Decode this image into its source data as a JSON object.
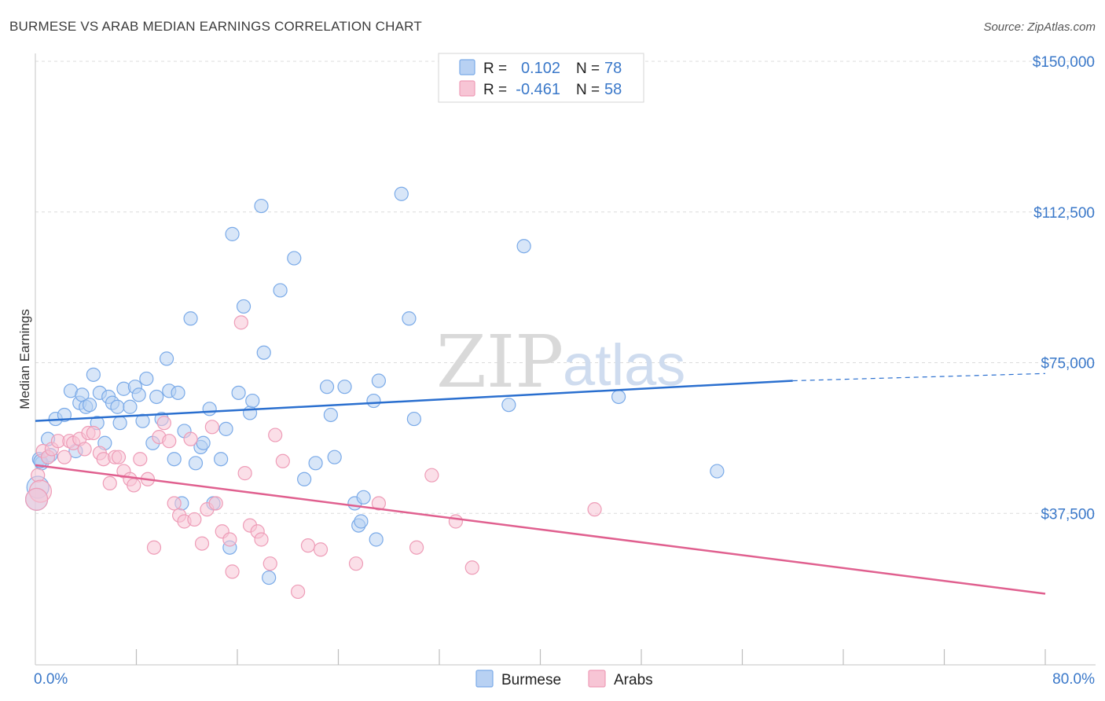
{
  "title": "BURMESE VS ARAB MEDIAN EARNINGS CORRELATION CHART",
  "source": "Source: ZipAtlas.com",
  "watermark": {
    "zip": "ZIP",
    "atlas": "atlas"
  },
  "colors": {
    "burmese": "#7aaae8",
    "burmese_fill": "#b8d1f3",
    "burmese_line": "#2a6fcf",
    "arabs": "#ee9cb7",
    "arabs_fill": "#f7c5d5",
    "arabs_line": "#e0608f",
    "axis_text": "#3a78c9",
    "grid": "#dcdcdc"
  },
  "legend": {
    "rows": [
      {
        "r_label": "R =",
        "r_value": "0.102",
        "n_label": "N =",
        "n_value": "78"
      },
      {
        "r_label": "R =",
        "r_value": "-0.461",
        "n_label": "N =",
        "n_value": "58"
      }
    ]
  },
  "bottom_legend": [
    "Burmese",
    "Arabs"
  ],
  "chart_data": {
    "type": "scatter",
    "title": "BURMESE VS ARAB MEDIAN EARNINGS CORRELATION CHART",
    "xlabel": "",
    "ylabel": "Median Earnings",
    "xlim": [
      0,
      80
    ],
    "ylim": [
      0,
      150000
    ],
    "x_tick_labels": [
      "0.0%",
      "80.0%"
    ],
    "y_ticks": [
      37500,
      75000,
      112500,
      150000
    ],
    "y_tick_labels": [
      "$37,500",
      "$75,000",
      "$112,500",
      "$150,000"
    ],
    "grid": true,
    "legend_position": "top-center",
    "series": [
      {
        "name": "Burmese",
        "r": 0.102,
        "n": 78,
        "trend": {
          "x": [
            0,
            60
          ],
          "y": [
            60500,
            70500
          ],
          "dashed_to": [
            80,
            72300
          ]
        },
        "points": [
          [
            0.3,
            51000
          ],
          [
            0.5,
            50000
          ],
          [
            1.0,
            56000
          ],
          [
            1.2,
            52000
          ],
          [
            1.6,
            61000
          ],
          [
            2.3,
            62000
          ],
          [
            2.8,
            68000
          ],
          [
            3.2,
            53000
          ],
          [
            3.5,
            65000
          ],
          [
            3.7,
            67000
          ],
          [
            4.0,
            64000
          ],
          [
            4.3,
            64500
          ],
          [
            4.6,
            72000
          ],
          [
            4.9,
            60000
          ],
          [
            5.1,
            67500
          ],
          [
            5.5,
            55000
          ],
          [
            5.8,
            66500
          ],
          [
            6.1,
            65000
          ],
          [
            6.5,
            64000
          ],
          [
            6.7,
            60000
          ],
          [
            7.0,
            68500
          ],
          [
            7.5,
            64000
          ],
          [
            7.9,
            69000
          ],
          [
            8.2,
            67000
          ],
          [
            8.5,
            60500
          ],
          [
            8.8,
            71000
          ],
          [
            9.3,
            55000
          ],
          [
            9.6,
            66500
          ],
          [
            10.0,
            61000
          ],
          [
            10.4,
            76000
          ],
          [
            10.6,
            68000
          ],
          [
            11.0,
            51000
          ],
          [
            11.3,
            67500
          ],
          [
            11.6,
            40000
          ],
          [
            11.8,
            58000
          ],
          [
            12.3,
            86000
          ],
          [
            12.7,
            50000
          ],
          [
            13.1,
            54000
          ],
          [
            13.3,
            55000
          ],
          [
            13.8,
            63500
          ],
          [
            14.1,
            40000
          ],
          [
            14.7,
            51000
          ],
          [
            15.1,
            58500
          ],
          [
            15.4,
            29000
          ],
          [
            15.6,
            107000
          ],
          [
            16.1,
            67500
          ],
          [
            16.5,
            89000
          ],
          [
            17.0,
            62500
          ],
          [
            17.2,
            65500
          ],
          [
            17.9,
            114000
          ],
          [
            18.1,
            77500
          ],
          [
            18.5,
            21500
          ],
          [
            19.4,
            93000
          ],
          [
            20.5,
            101000
          ],
          [
            21.3,
            46000
          ],
          [
            22.2,
            50000
          ],
          [
            23.1,
            69000
          ],
          [
            23.4,
            62000
          ],
          [
            23.7,
            51500
          ],
          [
            24.5,
            69000
          ],
          [
            25.3,
            40000
          ],
          [
            25.6,
            34500
          ],
          [
            25.8,
            35500
          ],
          [
            26.0,
            41500
          ],
          [
            26.8,
            65500
          ],
          [
            27.2,
            70500
          ],
          [
            27.0,
            31000
          ],
          [
            29.0,
            117000
          ],
          [
            29.6,
            86000
          ],
          [
            30.0,
            61000
          ],
          [
            37.5,
            64500
          ],
          [
            38.7,
            104000
          ],
          [
            46.2,
            66500
          ],
          [
            54.0,
            48000
          ],
          [
            0.2,
            44000
          ],
          [
            0.1,
            41000
          ],
          [
            0.4,
            50500
          ],
          [
            1.0,
            51500
          ]
        ]
      },
      {
        "name": "Arabs",
        "r": -0.461,
        "n": 58,
        "trend": {
          "x": [
            0,
            80
          ],
          "y": [
            49500,
            17500
          ]
        },
        "points": [
          [
            0.2,
            47000
          ],
          [
            0.4,
            43000
          ],
          [
            0.6,
            53000
          ],
          [
            1.0,
            51500
          ],
          [
            1.3,
            53500
          ],
          [
            1.8,
            55500
          ],
          [
            2.3,
            51500
          ],
          [
            2.7,
            55500
          ],
          [
            3.0,
            55000
          ],
          [
            3.5,
            56000
          ],
          [
            3.9,
            53500
          ],
          [
            4.2,
            57500
          ],
          [
            4.6,
            57500
          ],
          [
            5.1,
            52500
          ],
          [
            5.4,
            51000
          ],
          [
            5.9,
            45000
          ],
          [
            6.3,
            51500
          ],
          [
            6.6,
            51500
          ],
          [
            7.0,
            48000
          ],
          [
            7.5,
            46000
          ],
          [
            7.8,
            44500
          ],
          [
            8.3,
            51000
          ],
          [
            8.9,
            46000
          ],
          [
            9.4,
            29000
          ],
          [
            9.8,
            56500
          ],
          [
            10.2,
            60000
          ],
          [
            10.6,
            55500
          ],
          [
            11.0,
            40000
          ],
          [
            11.4,
            37000
          ],
          [
            11.8,
            35500
          ],
          [
            12.3,
            56000
          ],
          [
            12.6,
            36000
          ],
          [
            13.2,
            30000
          ],
          [
            13.6,
            38500
          ],
          [
            14.0,
            59000
          ],
          [
            14.3,
            40000
          ],
          [
            14.8,
            33000
          ],
          [
            15.4,
            31000
          ],
          [
            15.6,
            23000
          ],
          [
            16.3,
            85000
          ],
          [
            16.6,
            47500
          ],
          [
            17.0,
            34500
          ],
          [
            17.6,
            33000
          ],
          [
            17.9,
            31000
          ],
          [
            18.6,
            25000
          ],
          [
            19.0,
            57000
          ],
          [
            19.6,
            50500
          ],
          [
            20.8,
            18000
          ],
          [
            21.6,
            29500
          ],
          [
            22.6,
            28500
          ],
          [
            25.4,
            25000
          ],
          [
            27.2,
            40000
          ],
          [
            30.2,
            29000
          ],
          [
            31.4,
            47000
          ],
          [
            33.3,
            35500
          ],
          [
            34.6,
            24000
          ],
          [
            44.3,
            38500
          ],
          [
            0.1,
            41000
          ]
        ]
      }
    ]
  }
}
